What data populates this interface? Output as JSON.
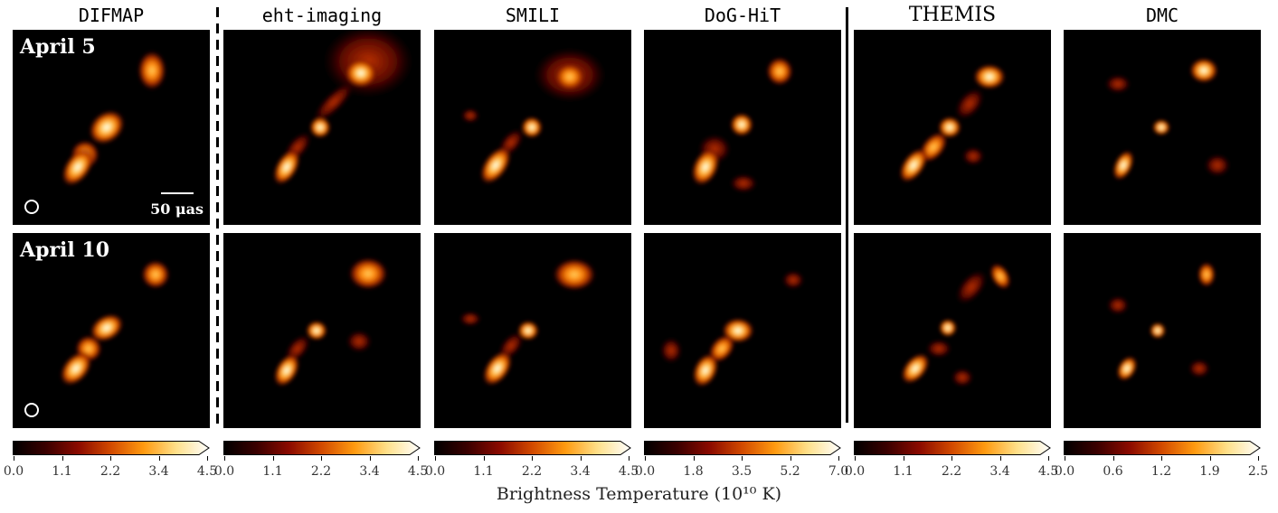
{
  "columns": [
    {
      "title": "DIFMAP",
      "cbar_ticks": [
        "0.0",
        "1.1",
        "2.2",
        "3.4",
        "4.5"
      ]
    },
    {
      "title": "eht-imaging",
      "cbar_ticks": [
        "0.0",
        "1.1",
        "2.2",
        "3.4",
        "4.5"
      ]
    },
    {
      "title": "SMILI",
      "cbar_ticks": [
        "0.0",
        "1.1",
        "2.2",
        "3.4",
        "4.5"
      ]
    },
    {
      "title": "DoG-HiT",
      "cbar_ticks": [
        "0.0",
        "1.8",
        "3.5",
        "5.2",
        "7.0"
      ]
    },
    {
      "title": "THEMIS",
      "cbar_ticks": [
        "0.0",
        "1.1",
        "2.2",
        "3.4",
        "4.5"
      ]
    },
    {
      "title": "DMC",
      "cbar_ticks": [
        "0.0",
        "0.6",
        "1.2",
        "1.9",
        "2.5"
      ]
    }
  ],
  "rows": [
    {
      "label": "April 5"
    },
    {
      "label": "April 10"
    }
  ],
  "scalebar_label": "50 μas",
  "colorbar_label": "Brightness Temperature (10¹⁰ K)",
  "colormap": [
    "#000000",
    "#3a0000",
    "#8b0a00",
    "#d24a00",
    "#ff9a10",
    "#ffe08a",
    "#ffffff"
  ]
}
